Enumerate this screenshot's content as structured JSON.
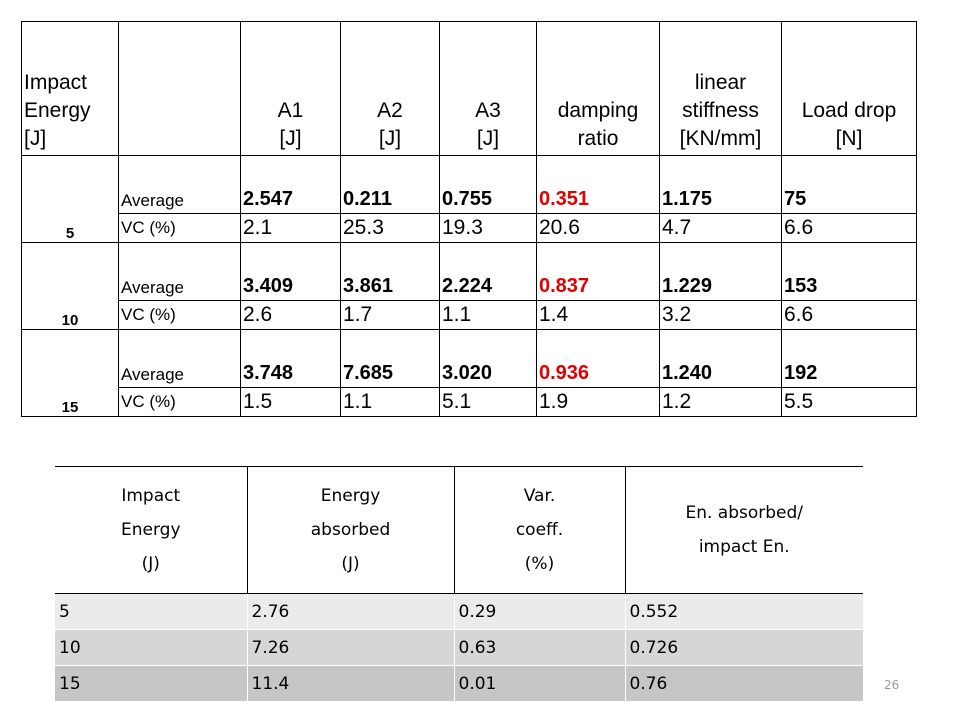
{
  "table1": {
    "headers": {
      "impact": [
        "Impact",
        "Energy",
        "[J]"
      ],
      "blank": "",
      "a1": [
        "A1",
        "[J]"
      ],
      "a2": [
        "A2",
        "[J]"
      ],
      "a3": [
        "A3",
        "[J]"
      ],
      "damping": [
        "damping",
        "ratio"
      ],
      "stiffness": [
        "linear",
        "stiffness",
        "[KN/mm]"
      ],
      "loaddrop": [
        "Load drop",
        "[N]"
      ]
    },
    "groups": [
      {
        "energy": "5",
        "avg_label": "Average",
        "avg": [
          "2.547",
          "0.211",
          "0.755",
          "0.351",
          "1.175",
          "75"
        ],
        "vc_label": "VC (%)",
        "vc": [
          "2.1",
          "25.3",
          "19.3",
          "20.6",
          "4.7",
          "6.6"
        ]
      },
      {
        "energy": "10",
        "avg_label": "Average",
        "avg": [
          "3.409",
          "3.861",
          "2.224",
          "0.837",
          "1.229",
          "153"
        ],
        "vc_label": "VC (%)",
        "vc": [
          "2.6",
          "1.7",
          "1.1",
          "1.4",
          "3.2",
          "6.6"
        ]
      },
      {
        "energy": "15",
        "avg_label": "Average",
        "avg": [
          "3.748",
          "7.685",
          "3.020",
          "0.936",
          "1.240",
          "192"
        ],
        "vc_label": "VC (%)",
        "vc": [
          "1.5",
          "1.1",
          "5.1",
          "1.9",
          "1.2",
          "5.5"
        ]
      }
    ],
    "highlight_color": "#e00000"
  },
  "table2": {
    "headers": [
      [
        "Impact",
        "Energy",
        "(J)"
      ],
      [
        "Energy",
        "absorbed",
        "(J)"
      ],
      [
        "Var.",
        "coeff.",
        "(%)"
      ],
      [
        "En. absorbed/",
        "impact En."
      ]
    ],
    "rows": [
      [
        "5",
        "2.76",
        "0.29",
        "0.552"
      ],
      [
        "10",
        "7.26",
        "0.63",
        "0.726"
      ],
      [
        "15",
        "11.4",
        "0.01",
        "0.76"
      ]
    ]
  },
  "page_number": "26"
}
